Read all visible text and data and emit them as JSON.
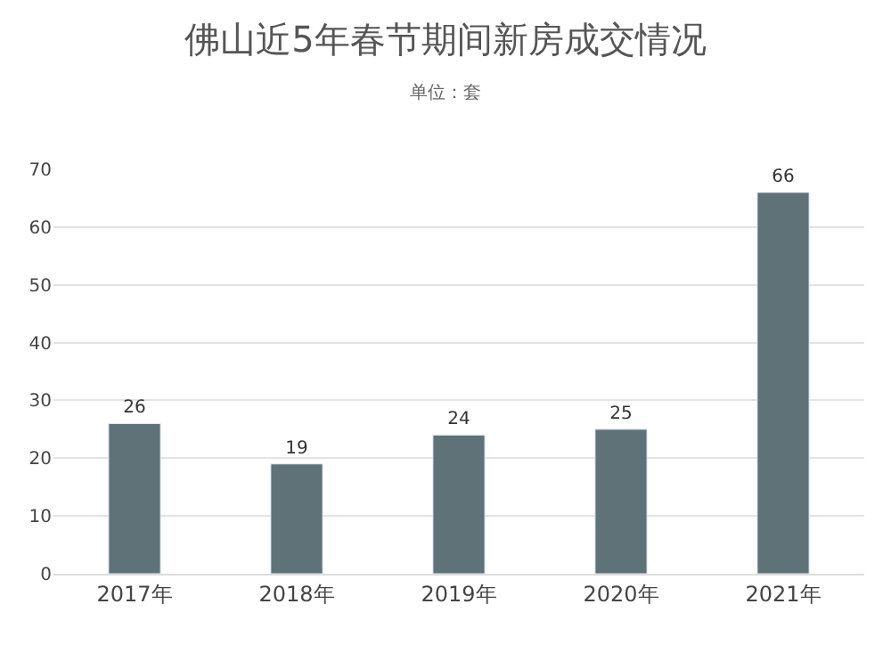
{
  "chart_data": {
    "type": "bar",
    "title": "佛山近5年春节期间新房成交情况",
    "subtitle": "单位：套",
    "categories": [
      "2017年",
      "2018年",
      "2019年",
      "2020年",
      "2021年"
    ],
    "values": [
      26,
      19,
      24,
      25,
      66
    ],
    "color": "#5f7277",
    "ylim": [
      0,
      70
    ],
    "yticks": [
      0,
      10,
      20,
      30,
      40,
      50,
      60,
      70
    ],
    "grid": "y",
    "data_labels": true,
    "legend": false
  }
}
